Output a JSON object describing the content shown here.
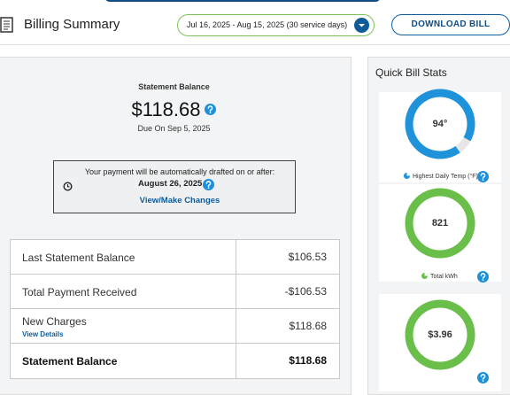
{
  "header": {
    "title": "Billing Summary",
    "date_range": "Jul 16, 2025 - Aug 15, 2025 (30 service days)",
    "download_button": "DOWNLOAD BILL"
  },
  "statement": {
    "label": "Statement Balance",
    "amount": "$118.68",
    "due": "Due On Sep 5, 2025"
  },
  "autopay": {
    "message": "Your payment will be automatically drafted on or after:",
    "date": "August 26, 2025",
    "link": "View/Make Changes"
  },
  "table": {
    "rows": [
      {
        "label": "Last Statement Balance",
        "value": "$106.53"
      },
      {
        "label": "Total Payment Received",
        "value": "-$106.53"
      },
      {
        "label": "New Charges",
        "value": "$118.68",
        "link": "View Details"
      },
      {
        "label": "Statement Balance",
        "value": "$118.68"
      }
    ]
  },
  "quick_stats": {
    "title": "Quick Bill Stats",
    "cards": [
      {
        "value": "94°",
        "label": "Highest Daily Temp (°F)"
      },
      {
        "value": "821",
        "label": "Total kWh"
      },
      {
        "value": "$3.96"
      }
    ]
  }
}
